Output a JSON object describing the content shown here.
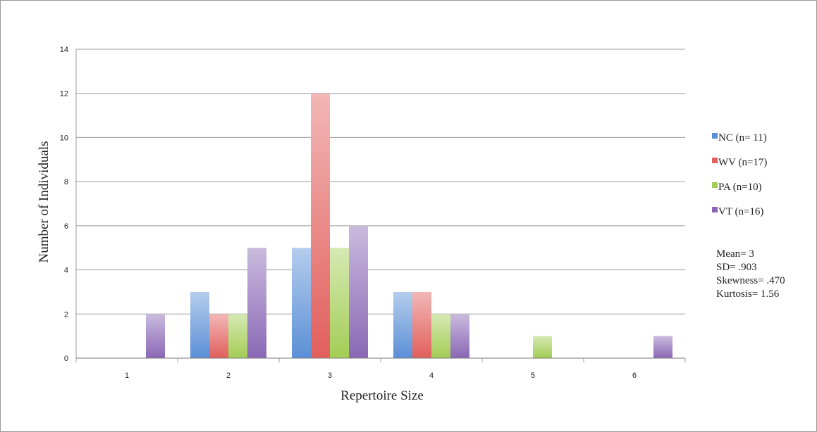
{
  "chart_data": {
    "type": "bar",
    "title": "",
    "xlabel": "Repertoire Size",
    "ylabel": "Number of Individuals",
    "categories": [
      "1",
      "2",
      "3",
      "4",
      "5",
      "6"
    ],
    "ylim": [
      0,
      14
    ],
    "yticks": [
      0,
      2,
      4,
      6,
      8,
      10,
      12,
      14
    ],
    "grid": "horizontal",
    "legend_position": "right",
    "series": [
      {
        "name": "NC (n= 11)",
        "color": "#5b8fd6",
        "values": [
          0,
          3,
          5,
          3,
          0,
          0
        ]
      },
      {
        "name": "WV (n=17)",
        "color": "#e15f5c",
        "values": [
          0,
          2,
          12,
          3,
          0,
          0
        ]
      },
      {
        "name": "PA (n=10)",
        "color": "#a3cd55",
        "values": [
          0,
          2,
          5,
          2,
          1,
          0
        ]
      },
      {
        "name": "VT (n=16)",
        "color": "#8a68b5",
        "values": [
          2,
          5,
          6,
          2,
          0,
          1
        ]
      }
    ]
  },
  "stats": {
    "mean": "Mean= 3",
    "sd": "SD= .903",
    "skewness": "Skewness= .470",
    "kurtosis": "Kurtosis= 1.56"
  }
}
